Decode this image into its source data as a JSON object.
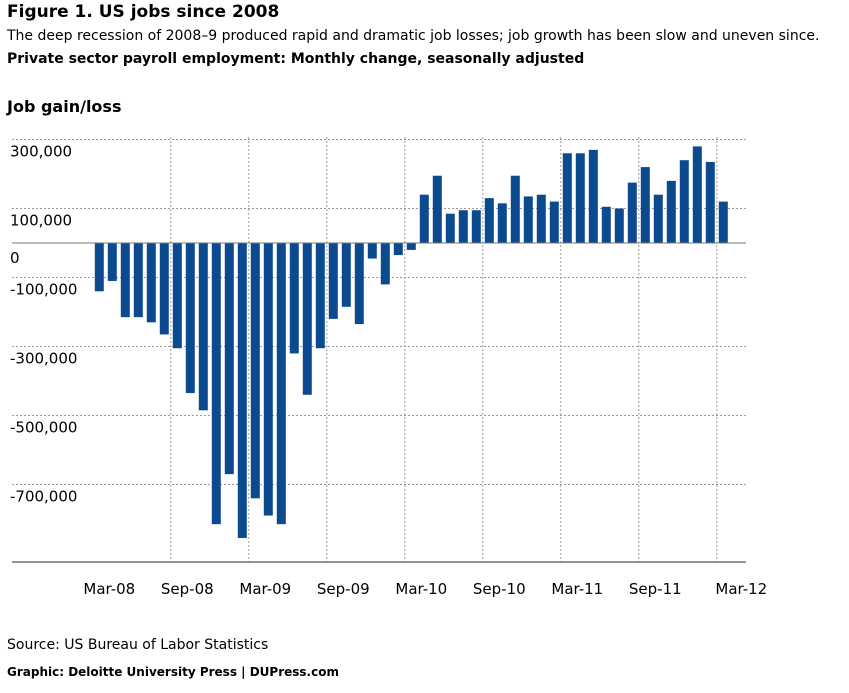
{
  "title": "Figure 1. US jobs since 2008",
  "subtitle": "The deep recession of 2008–9 produced rapid and dramatic job losses; job growth has been slow and uneven since.",
  "subtitle2": "Private sector payroll employment: Monthly change, seasonally adjusted",
  "source": "Source: US Bureau of Labor Statistics",
  "credit": "Graphic: Deloitte University Press  |  DUPress.com",
  "colors": {
    "bar": "#0b4a8f",
    "grid": "#999999"
  },
  "chart_data": {
    "type": "bar",
    "title": "Figure 1. US jobs since 2008",
    "ylabel": "Job gain/loss",
    "xlabel": "",
    "ylim": [
      -920000,
      330000
    ],
    "y_ticks": [
      300000,
      100000,
      0,
      -100000,
      -300000,
      -500000,
      -700000
    ],
    "y_tick_labels": [
      "300,000",
      "100,000",
      "0",
      "-100,000",
      "-300,000",
      "-500,000",
      "-700,000"
    ],
    "x_tick_labels": [
      {
        "label": "Mar-08",
        "index": 0
      },
      {
        "label": "Sep-08",
        "index": 6
      },
      {
        "label": "Mar-09",
        "index": 12
      },
      {
        "label": "Sep-09",
        "index": 18
      },
      {
        "label": "Mar-10",
        "index": 24
      },
      {
        "label": "Sep-10",
        "index": 30
      },
      {
        "label": "Mar-11",
        "index": 36
      },
      {
        "label": "Sep-11",
        "index": 42
      },
      {
        "label": "Mar-12",
        "index": 48
      }
    ],
    "categories": [
      "Mar-08",
      "Apr-08",
      "May-08",
      "Jun-08",
      "Jul-08",
      "Aug-08",
      "Sep-08",
      "Oct-08",
      "Nov-08",
      "Dec-08",
      "Jan-09",
      "Feb-09",
      "Mar-09",
      "Apr-09",
      "May-09",
      "Jun-09",
      "Jul-09",
      "Aug-09",
      "Sep-09",
      "Oct-09",
      "Nov-09",
      "Dec-09",
      "Jan-10",
      "Feb-10",
      "Mar-10",
      "Apr-10",
      "May-10",
      "Jun-10",
      "Jul-10",
      "Aug-10",
      "Sep-10",
      "Oct-10",
      "Nov-10",
      "Dec-10",
      "Jan-11",
      "Feb-11",
      "Mar-11",
      "Apr-11",
      "May-11",
      "Jun-11",
      "Jul-11",
      "Aug-11",
      "Sep-11",
      "Oct-11",
      "Nov-11",
      "Dec-11",
      "Jan-12",
      "Feb-12",
      "Mar-12"
    ],
    "values": [
      -140000,
      -110000,
      -215000,
      -215000,
      -230000,
      -265000,
      -305000,
      -435000,
      -485000,
      -815000,
      -670000,
      -855000,
      -740000,
      -790000,
      -815000,
      -320000,
      -440000,
      -305000,
      -220000,
      -185000,
      -235000,
      -45000,
      -120000,
      -35000,
      -20000,
      140000,
      195000,
      85000,
      95000,
      95000,
      130000,
      115000,
      195000,
      135000,
      140000,
      120000,
      260000,
      260000,
      270000,
      105000,
      100000,
      175000,
      220000,
      140000,
      180000,
      240000,
      280000,
      235000,
      120000
    ],
    "grid": true,
    "legend": "none"
  }
}
